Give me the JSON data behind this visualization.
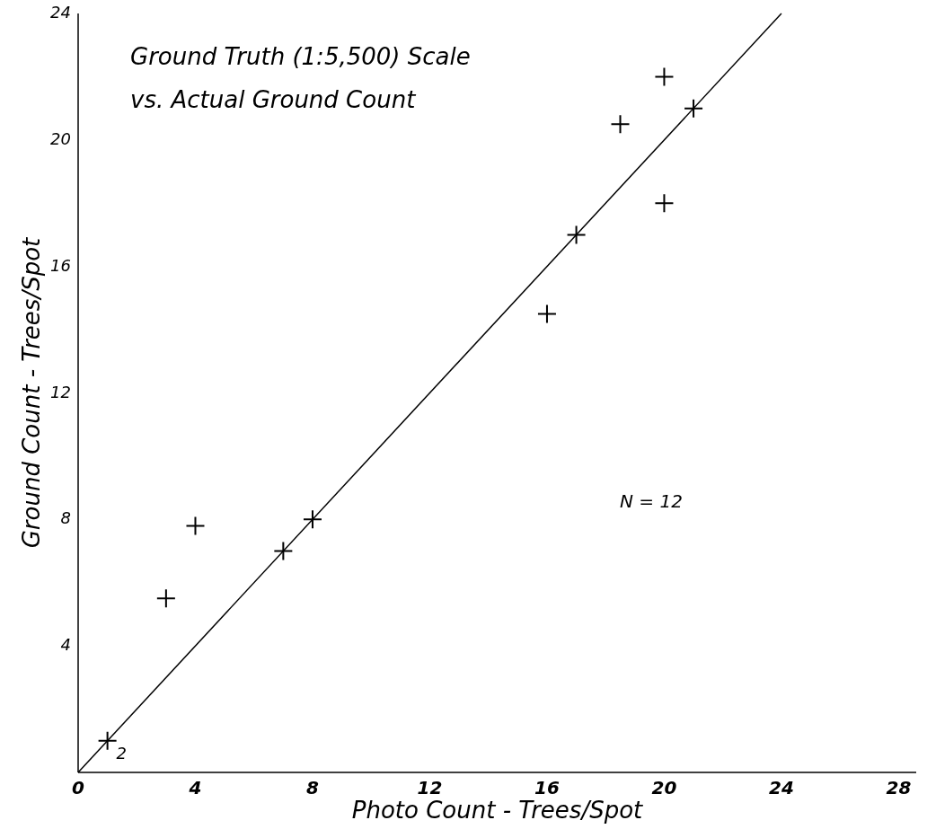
{
  "chart_data": {
    "type": "scatter",
    "title": "Ground Truth (1:5,500) Scale",
    "subtitle": "vs. Actual Ground Count",
    "xlabel": "Photo Count  - Trees/Spot",
    "ylabel": "Ground Count  -  Trees/Spot",
    "annotations": [
      "N = 12",
      {
        "text": "2",
        "x": 1,
        "y": 1
      }
    ],
    "xlim": [
      0,
      28.6
    ],
    "ylim": [
      0,
      24
    ],
    "xticks": [
      0,
      4,
      8,
      12,
      16,
      20,
      24,
      28
    ],
    "yticks": [
      4,
      8,
      12,
      16,
      20,
      24
    ],
    "grid": false,
    "series": [
      {
        "marker": "cross",
        "color": "#000000",
        "x": [
          1,
          3,
          4,
          7,
          8,
          16,
          17,
          18.5,
          20,
          20,
          21
        ],
        "values": [
          1,
          5.5,
          7.8,
          7,
          8,
          14.5,
          17,
          20.5,
          22,
          18,
          21
        ]
      },
      {
        "type": "line",
        "color": "#000000",
        "x": [
          0,
          24
        ],
        "values": [
          0,
          24
        ]
      }
    ]
  }
}
